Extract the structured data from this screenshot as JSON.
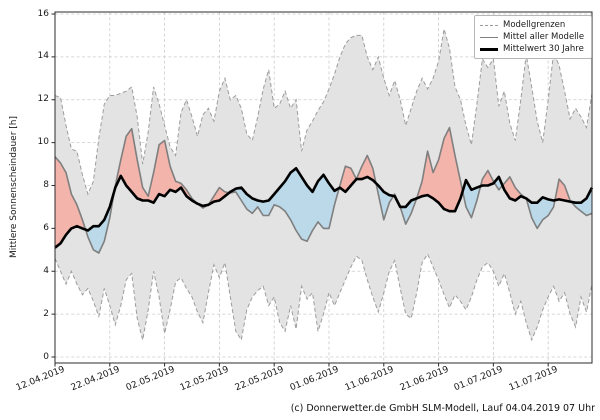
{
  "figure": {
    "ylabel": "Mittlere Sonnenscheindauer [h]",
    "caption": "(c) Donnerwetter.de GmbH SLM-Modell, Lauf 04.04.2019 07 Uhr",
    "legend": {
      "items": [
        {
          "label": "Modellgrenzen",
          "style": "dashed-gray-line"
        },
        {
          "label": "Mittel aller Modelle",
          "style": "solid-gray-line"
        },
        {
          "label": "Mittelwert 30 Jahre",
          "style": "thick-black-line"
        }
      ],
      "position": "upper right"
    }
  },
  "colors": {
    "band_fill": "#e3e3e3",
    "band_edge": "#9c9c9c",
    "model_mean_line": "#7f7f7f",
    "climate_mean_line": "#000000",
    "above_climate_fill": "#f3b4ab",
    "below_climate_fill": "#bbd9e9",
    "grid": "#cbcbcb",
    "spine": "#2b2b2b",
    "text": "#191919"
  },
  "chart_data": {
    "type": "line",
    "title": "",
    "ylabel": "Mittlere Sonnenscheindauer [h]",
    "ylim": [
      0,
      16
    ],
    "yticks": [
      0,
      2,
      4,
      6,
      8,
      10,
      12,
      14,
      16
    ],
    "grid": true,
    "x_start_date": "12.04.2019",
    "x_end_date": "19.07.2019",
    "x_step_days": 1,
    "xtick_labels": [
      "12.04.2019",
      "22.04.2019",
      "02.05.2019",
      "12.05.2019",
      "22.05.2019",
      "01.06.2019",
      "11.06.2019",
      "21.06.2019",
      "01.07.2019",
      "11.07.2019"
    ],
    "xtick_day_index": [
      0,
      10,
      20,
      30,
      40,
      50,
      60,
      70,
      80,
      90
    ],
    "legend_position": "upper right",
    "series": [
      {
        "name": "Modellgrenzen (obere Grenze)",
        "style": "dashed",
        "values": [
          12.2,
          12.1,
          10.8,
          9.7,
          9.6,
          8.5,
          7.6,
          8.2,
          10.2,
          11.8,
          12.2,
          12.2,
          12.3,
          12.4,
          12.6,
          11.2,
          9.0,
          10.5,
          12.6,
          11.8,
          10.8,
          9.8,
          9.4,
          11.4,
          12.0,
          11.2,
          10.3,
          11.3,
          11.6,
          11.0,
          12.4,
          13.0,
          12.0,
          12.2,
          11.6,
          10.4,
          10.1,
          11.2,
          12.5,
          13.4,
          11.6,
          11.8,
          12.4,
          11.6,
          12.0,
          9.6,
          10.6,
          11.0,
          11.5,
          11.9,
          12.5,
          13.2,
          14.0,
          14.6,
          14.9,
          15.0,
          15.0,
          14.0,
          13.4,
          14.0,
          13.0,
          12.2,
          12.9,
          12.0,
          10.8,
          11.6,
          12.4,
          13.0,
          12.5,
          13.0,
          13.8,
          15.3,
          14.4,
          12.6,
          12.0,
          10.8,
          9.9,
          11.8,
          13.9,
          13.5,
          13.9,
          11.7,
          12.4,
          10.9,
          10.1,
          12.0,
          14.1,
          12.6,
          11.0,
          10.0,
          12.0,
          14.2,
          13.6,
          12.4,
          11.1,
          11.6,
          11.2,
          10.7,
          12.3
        ]
      },
      {
        "name": "Modellgrenzen (untere Grenze)",
        "style": "dashed",
        "values": [
          4.6,
          4.0,
          3.4,
          4.0,
          3.4,
          2.9,
          3.2,
          2.6,
          1.9,
          3.2,
          2.4,
          1.5,
          2.4,
          3.6,
          3.9,
          1.8,
          0.8,
          2.2,
          4.0,
          2.8,
          1.1,
          2.2,
          3.5,
          3.7,
          3.2,
          2.8,
          2.1,
          1.6,
          3.0,
          4.3,
          3.7,
          4.4,
          2.8,
          1.2,
          0.8,
          2.2,
          2.8,
          3.1,
          3.3,
          2.4,
          2.8,
          1.6,
          1.2,
          2.4,
          1.3,
          3.3,
          2.7,
          3.0,
          1.2,
          2.0,
          3.0,
          2.4,
          3.0,
          3.6,
          4.2,
          4.7,
          4.5,
          3.6,
          2.8,
          2.1,
          3.0,
          4.0,
          4.5,
          3.2,
          2.0,
          1.8,
          3.0,
          4.4,
          4.8,
          4.2,
          3.6,
          2.9,
          2.3,
          2.9,
          2.6,
          2.2,
          2.8,
          3.6,
          4.2,
          4.4,
          4.0,
          3.3,
          3.9,
          3.0,
          2.0,
          2.6,
          1.6,
          0.8,
          1.4,
          2.2,
          2.8,
          3.3,
          2.6,
          3.0,
          2.0,
          1.4,
          2.8,
          2.1,
          3.4
        ]
      },
      {
        "name": "Mittel aller Modelle",
        "style": "solid-gray",
        "values": [
          9.35,
          9.05,
          8.6,
          7.6,
          7.1,
          6.4,
          5.6,
          5.0,
          4.85,
          5.4,
          6.5,
          8.0,
          9.2,
          10.3,
          10.65,
          9.2,
          7.9,
          7.5,
          8.6,
          9.9,
          10.1,
          8.9,
          8.2,
          8.1,
          7.8,
          7.4,
          7.15,
          6.95,
          7.1,
          7.5,
          7.9,
          7.7,
          7.65,
          7.7,
          7.3,
          6.9,
          6.7,
          7.0,
          6.6,
          6.6,
          7.1,
          7.0,
          6.8,
          6.4,
          5.9,
          5.5,
          5.4,
          5.9,
          6.3,
          6.0,
          6.0,
          7.1,
          8.0,
          8.9,
          8.8,
          8.3,
          8.9,
          9.4,
          8.8,
          7.6,
          6.4,
          7.2,
          7.6,
          7.0,
          6.2,
          6.7,
          7.4,
          8.2,
          9.6,
          8.6,
          9.2,
          10.2,
          10.7,
          9.4,
          8.2,
          7.0,
          6.5,
          7.3,
          8.3,
          8.7,
          8.2,
          7.8,
          8.1,
          8.4,
          7.9,
          7.6,
          7.4,
          6.5,
          6.0,
          6.4,
          6.6,
          7.0,
          8.3,
          8.0,
          7.3,
          7.0,
          6.8,
          6.6,
          6.7
        ]
      },
      {
        "name": "Mittelwert 30 Jahre",
        "style": "solid-black-thick",
        "values": [
          5.1,
          5.3,
          5.7,
          6.0,
          6.1,
          6.0,
          5.9,
          6.1,
          6.1,
          6.4,
          7.0,
          7.9,
          8.45,
          8.0,
          7.7,
          7.4,
          7.3,
          7.3,
          7.2,
          7.6,
          7.5,
          7.8,
          7.7,
          7.9,
          7.5,
          7.3,
          7.15,
          7.05,
          7.1,
          7.25,
          7.3,
          7.5,
          7.7,
          7.85,
          7.9,
          7.6,
          7.4,
          7.3,
          7.25,
          7.3,
          7.6,
          7.9,
          8.2,
          8.6,
          8.8,
          8.4,
          8.0,
          7.7,
          8.2,
          8.5,
          8.1,
          7.75,
          7.9,
          7.7,
          8.0,
          8.3,
          8.3,
          8.4,
          8.25,
          8.0,
          7.7,
          7.55,
          7.5,
          7.0,
          7.0,
          7.3,
          7.4,
          7.5,
          7.55,
          7.4,
          7.2,
          6.9,
          6.8,
          6.8,
          7.4,
          8.25,
          7.8,
          7.9,
          8.0,
          8.0,
          8.1,
          8.4,
          7.8,
          7.4,
          7.3,
          7.5,
          7.4,
          7.2,
          7.2,
          7.45,
          7.35,
          7.3,
          7.35,
          7.3,
          7.25,
          7.2,
          7.2,
          7.4,
          7.9
        ]
      }
    ],
    "fills": {
      "band": "between upper and lower model limits",
      "red": "model mean above 30-year mean",
      "blue": "model mean below 30-year mean"
    }
  }
}
